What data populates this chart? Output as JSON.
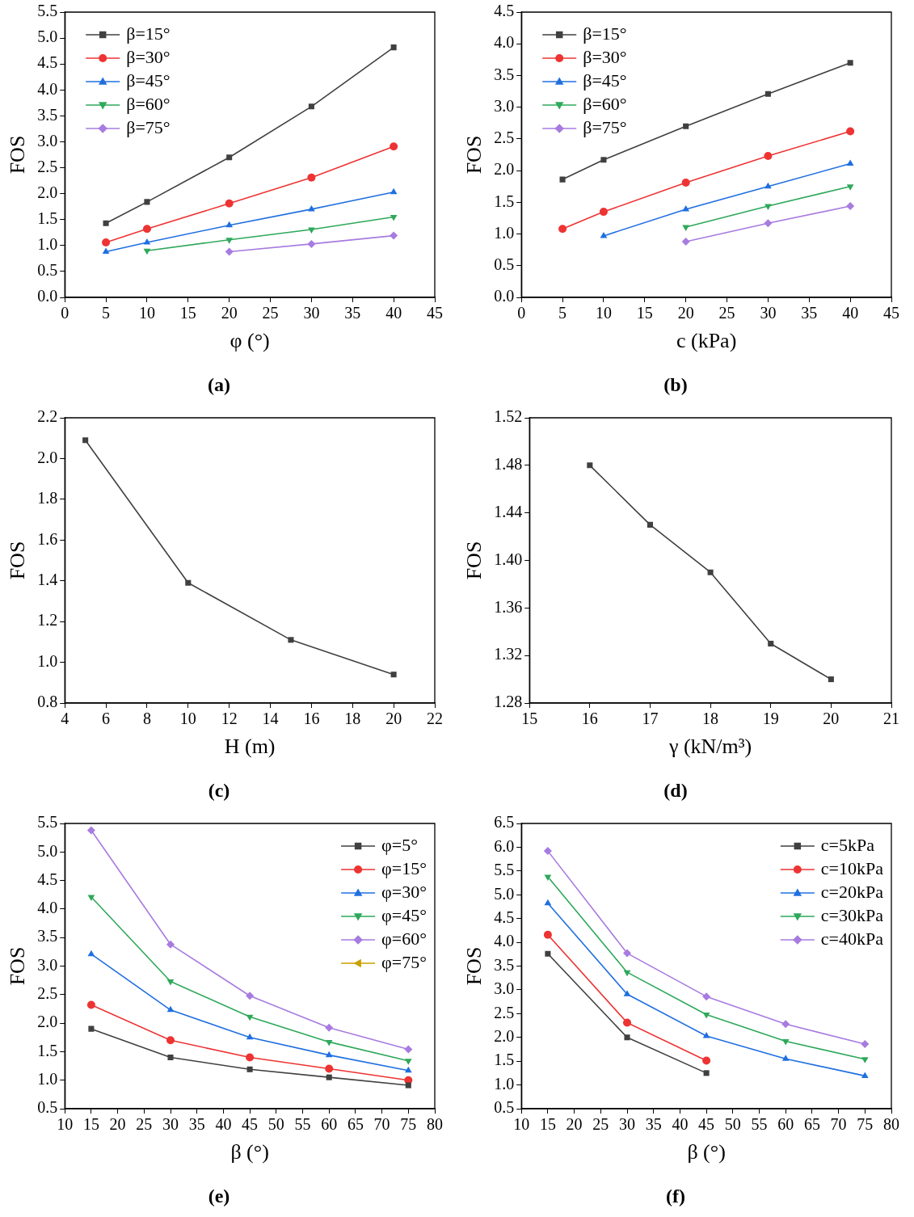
{
  "chart_data": [
    {
      "type": "line",
      "title": "(a)",
      "xlabel": "φ (°)",
      "ylabel": "FOS",
      "x": [
        5,
        10,
        20,
        30,
        40
      ],
      "xlim": [
        0,
        45
      ],
      "xticks": [
        0,
        5,
        10,
        15,
        20,
        25,
        30,
        35,
        40,
        45
      ],
      "ylim": [
        0,
        5.5
      ],
      "yticks": [
        {
          "value": 0,
          "label": "0.0"
        },
        0.5,
        {
          "value": 1,
          "label": "1.0"
        },
        1.5,
        {
          "value": 2,
          "label": "2.0"
        },
        2.5,
        {
          "value": 3,
          "label": "3.0"
        },
        3.5,
        {
          "value": 4,
          "label": "4.0"
        },
        4.5,
        {
          "value": 5,
          "label": "5.0"
        },
        5.5
      ],
      "grid": false,
      "legend": "top left",
      "line_style": "solid",
      "series": [
        {
          "name": "β=15°",
          "color": "#404040",
          "marker": "square",
          "values": [
            1.43,
            1.84,
            2.7,
            3.68,
            4.82
          ]
        },
        {
          "name": "β=30°",
          "color": "#ee3333",
          "marker": "circle",
          "values": [
            1.06,
            1.32,
            1.81,
            2.31,
            2.91
          ]
        },
        {
          "name": "β=45°",
          "color": "#1f6fe0",
          "marker": "triangle",
          "values": [
            0.88,
            1.06,
            1.39,
            1.7,
            2.03
          ]
        },
        {
          "name": "β=60°",
          "color": "#2ea85a",
          "marker": "triangle-down",
          "values": [
            null,
            0.9,
            1.11,
            1.31,
            1.55
          ]
        },
        {
          "name": "β=75°",
          "color": "#a77be0",
          "marker": "diamond",
          "values": [
            null,
            null,
            0.88,
            1.03,
            1.19
          ]
        }
      ]
    },
    {
      "type": "line",
      "title": "(b)",
      "xlabel": "c (kPa)",
      "ylabel": "FOS",
      "x": [
        5,
        10,
        20,
        30,
        40
      ],
      "xlim": [
        0,
        45
      ],
      "xticks": [
        0,
        5,
        10,
        15,
        20,
        25,
        30,
        35,
        40,
        45
      ],
      "ylim": [
        0,
        4.5
      ],
      "yticks": [
        {
          "value": 0,
          "label": "0.0"
        },
        0.5,
        {
          "value": 1,
          "label": "1.0"
        },
        1.5,
        {
          "value": 2,
          "label": "2.0"
        },
        2.5,
        {
          "value": 3,
          "label": "3.0"
        },
        3.5,
        {
          "value": 4,
          "label": "4.0"
        },
        4.5
      ],
      "grid": false,
      "legend": "top left",
      "line_style": "solid",
      "series": [
        {
          "name": "β=15°",
          "color": "#404040",
          "marker": "square",
          "values": [
            1.86,
            2.17,
            2.7,
            3.21,
            3.7
          ]
        },
        {
          "name": "β=30°",
          "color": "#ee3333",
          "marker": "circle",
          "values": [
            1.08,
            1.35,
            1.81,
            2.23,
            2.62
          ]
        },
        {
          "name": "β=45°",
          "color": "#1f6fe0",
          "marker": "triangle",
          "values": [
            null,
            0.97,
            1.39,
            1.75,
            2.11
          ]
        },
        {
          "name": "β=60°",
          "color": "#2ea85a",
          "marker": "triangle-down",
          "values": [
            null,
            null,
            1.11,
            1.44,
            1.75
          ]
        },
        {
          "name": "β=75°",
          "color": "#a77be0",
          "marker": "diamond",
          "values": [
            null,
            null,
            0.88,
            1.17,
            1.44
          ]
        }
      ]
    },
    {
      "type": "line",
      "title": "(c)",
      "xlabel": "H (m)",
      "ylabel": "FOS",
      "x": [
        5,
        10,
        15,
        20
      ],
      "xlim": [
        4,
        22
      ],
      "xticks": [
        4,
        6,
        8,
        10,
        12,
        14,
        16,
        18,
        20,
        22
      ],
      "ylim": [
        0.8,
        2.2
      ],
      "yticks": [
        0.8,
        {
          "value": 1,
          "label": "1.0"
        },
        1.2,
        1.4,
        1.6,
        1.8,
        {
          "value": 2,
          "label": "2.0"
        },
        2.2
      ],
      "grid": false,
      "legend": false,
      "line_style": "solid",
      "series": [
        {
          "color": "#404040",
          "marker": "square",
          "values": [
            2.09,
            1.39,
            1.11,
            0.94
          ]
        }
      ]
    },
    {
      "type": "line",
      "title": "(d)",
      "xlabel": "γ (kN/m³)",
      "ylabel": "FOS",
      "x": [
        16,
        17,
        18,
        19,
        20
      ],
      "xlim": [
        15,
        21
      ],
      "xticks": [
        15,
        16,
        17,
        18,
        19,
        20,
        21
      ],
      "ylim": [
        1.28,
        1.52
      ],
      "yticks": [
        1.28,
        1.32,
        1.36,
        {
          "value": 1.4,
          "label": "1.40"
        },
        1.44,
        1.48,
        1.52
      ],
      "grid": false,
      "legend": false,
      "line_style": "solid",
      "series": [
        {
          "color": "#404040",
          "marker": "square",
          "values": [
            1.48,
            1.43,
            1.39,
            1.33,
            1.3
          ]
        }
      ]
    },
    {
      "type": "line",
      "title": "(e)",
      "xlabel": "β (°)",
      "ylabel": "FOS",
      "x": [
        15,
        30,
        45,
        60,
        75
      ],
      "xlim": [
        10,
        80
      ],
      "xticks": [
        10,
        15,
        20,
        25,
        30,
        35,
        40,
        45,
        50,
        55,
        60,
        65,
        70,
        75,
        80
      ],
      "ylim": [
        0.5,
        5.5
      ],
      "yticks": [
        0.5,
        {
          "value": 1,
          "label": "1.0"
        },
        1.5,
        {
          "value": 2,
          "label": "2.0"
        },
        2.5,
        {
          "value": 3,
          "label": "3.0"
        },
        3.5,
        {
          "value": 4,
          "label": "4.0"
        },
        4.5,
        {
          "value": 5,
          "label": "5.0"
        },
        5.5
      ],
      "grid": false,
      "legend": "top right",
      "line_style": "solid",
      "series": [
        {
          "name": "φ=5°",
          "color": "#404040",
          "marker": "square",
          "values": [
            1.9,
            1.4,
            1.19,
            1.05,
            0.91
          ]
        },
        {
          "name": "φ=15°",
          "color": "#ee3333",
          "marker": "circle",
          "values": [
            2.32,
            1.7,
            1.4,
            1.2,
            1.0
          ]
        },
        {
          "name": "φ=30°",
          "color": "#1f6fe0",
          "marker": "triangle",
          "values": [
            3.21,
            2.23,
            1.75,
            1.44,
            1.17
          ]
        },
        {
          "name": "φ=45°",
          "color": "#2ea85a",
          "marker": "triangle-down",
          "values": [
            4.21,
            2.73,
            2.11,
            1.67,
            1.34
          ]
        },
        {
          "name": "φ=60°",
          "color": "#a77be0",
          "marker": "diamond",
          "values": [
            5.38,
            3.38,
            2.48,
            1.92,
            1.54
          ]
        },
        {
          "name": "φ=75°",
          "color": "#c8a000",
          "marker": "triangle-left",
          "values": [
            null,
            null,
            null,
            null,
            null
          ]
        }
      ]
    },
    {
      "type": "line",
      "title": "(f)",
      "xlabel": "β (°)",
      "ylabel": "FOS",
      "x": [
        15,
        30,
        45,
        60,
        75
      ],
      "xlim": [
        10,
        80
      ],
      "xticks": [
        10,
        15,
        20,
        25,
        30,
        35,
        40,
        45,
        50,
        55,
        60,
        65,
        70,
        75,
        80
      ],
      "ylim": [
        0.5,
        6.5
      ],
      "yticks": [
        0.5,
        {
          "value": 1,
          "label": "1.0"
        },
        1.5,
        {
          "value": 2,
          "label": "2.0"
        },
        2.5,
        {
          "value": 3,
          "label": "3.0"
        },
        3.5,
        {
          "value": 4,
          "label": "4.0"
        },
        4.5,
        {
          "value": 5,
          "label": "5.0"
        },
        5.5,
        {
          "value": 6,
          "label": "6.0"
        },
        6.5
      ],
      "grid": false,
      "legend": "top right",
      "line_style": "solid",
      "series": [
        {
          "name": "c=5kPa",
          "color": "#404040",
          "marker": "square",
          "values": [
            3.76,
            2.0,
            1.25,
            null,
            null
          ]
        },
        {
          "name": "c=10kPa",
          "color": "#ee3333",
          "marker": "circle",
          "values": [
            4.16,
            2.31,
            1.51,
            null,
            null
          ]
        },
        {
          "name": "c=20kPa",
          "color": "#1f6fe0",
          "marker": "triangle",
          "values": [
            4.82,
            2.91,
            2.03,
            1.55,
            1.19
          ]
        },
        {
          "name": "c=30kPa",
          "color": "#2ea85a",
          "marker": "triangle-down",
          "values": [
            5.38,
            3.37,
            2.48,
            1.92,
            1.54
          ]
        },
        {
          "name": "c=40kPa",
          "color": "#a77be0",
          "marker": "diamond",
          "values": [
            5.92,
            3.77,
            2.86,
            2.28,
            1.86
          ]
        }
      ]
    }
  ]
}
